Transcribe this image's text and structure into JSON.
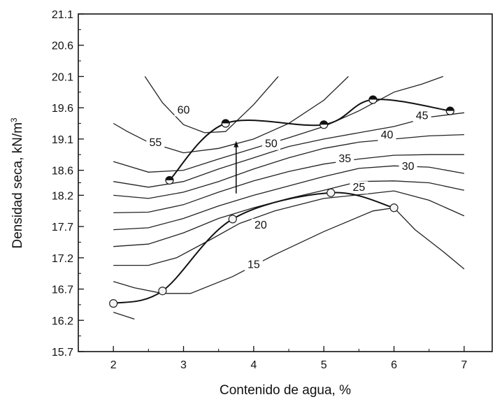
{
  "chart_data": {
    "type": "line",
    "title": "",
    "xlabel": "Contenido de agua, %",
    "ylabel_main": "Densidad seca, kN/m",
    "ylabel_sup": "3",
    "xlim": [
      1.5,
      7.4
    ],
    "ylim": [
      15.7,
      21.1
    ],
    "x_ticks": [
      "2",
      "3",
      "4",
      "5",
      "6",
      "7"
    ],
    "y_ticks": [
      "15.7",
      "16.2",
      "16.7",
      "17.2",
      "17.7",
      "18.2",
      "18.6",
      "19.1",
      "19.6",
      "20.1",
      "20.6",
      "21.1"
    ],
    "y_tick_values": [
      15.7,
      16.2,
      16.7,
      17.2,
      17.7,
      18.2,
      18.6,
      19.1,
      19.6,
      20.1,
      20.6,
      21.1
    ],
    "grid": false,
    "series": [
      {
        "marker": "open-circle",
        "x": [
          2.0,
          2.7,
          3.7,
          5.1,
          6.0
        ],
        "y": [
          16.47,
          16.67,
          17.82,
          18.24,
          18.0
        ]
      },
      {
        "marker": "half-filled-circle",
        "x": [
          2.8,
          3.6,
          5.0,
          5.7,
          6.8
        ],
        "y": [
          18.44,
          19.35,
          19.33,
          19.73,
          19.55
        ]
      }
    ],
    "contours": [
      {
        "label": "15",
        "label_at": [
          4.0,
          17.05
        ],
        "x": [
          2.0,
          2.3,
          2.7,
          3.1,
          3.7,
          4.3,
          5.0,
          5.7,
          6.0,
          6.3,
          6.7,
          7.0
        ],
        "y": [
          16.82,
          16.72,
          16.63,
          16.63,
          16.9,
          17.25,
          17.62,
          17.95,
          18.0,
          17.65,
          17.3,
          17.02
        ]
      },
      {
        "label": "20",
        "label_at": [
          4.1,
          17.68
        ],
        "x": [
          2.0,
          2.5,
          2.9,
          3.4,
          3.8,
          4.3,
          5.0,
          5.6,
          6.0,
          6.5,
          7.0
        ],
        "y": [
          17.08,
          17.08,
          17.2,
          17.5,
          17.75,
          17.95,
          18.15,
          18.22,
          18.27,
          18.12,
          17.87
        ]
      },
      {
        "label": "25",
        "label_at": [
          5.5,
          18.28
        ],
        "x": [
          2.0,
          2.5,
          3.0,
          3.5,
          4.0,
          4.5,
          5.0,
          5.5,
          6.0,
          6.5,
          7.0
        ],
        "y": [
          17.38,
          17.42,
          17.6,
          17.83,
          18.0,
          18.15,
          18.28,
          18.42,
          18.43,
          18.4,
          18.28
        ]
      },
      {
        "label": "30",
        "label_at": [
          6.2,
          18.62
        ],
        "x": [
          2.0,
          2.5,
          3.0,
          3.5,
          4.0,
          4.5,
          5.0,
          5.5,
          6.0,
          6.5,
          7.0
        ],
        "y": [
          17.65,
          17.68,
          17.83,
          18.03,
          18.2,
          18.35,
          18.5,
          18.63,
          18.67,
          18.65,
          18.55
        ]
      },
      {
        "label": "35",
        "label_at": [
          5.3,
          18.74
        ],
        "x": [
          2.0,
          2.5,
          3.0,
          3.5,
          4.0,
          4.5,
          5.0,
          5.5,
          6.0,
          6.5,
          7.0
        ],
        "y": [
          17.92,
          17.93,
          18.05,
          18.25,
          18.43,
          18.58,
          18.7,
          18.78,
          18.84,
          18.85,
          18.85
        ]
      },
      {
        "label": "40",
        "label_at": [
          5.9,
          19.12
        ],
        "x": [
          2.0,
          2.5,
          3.0,
          3.5,
          4.0,
          4.5,
          5.0,
          5.5,
          6.0,
          6.5,
          7.0
        ],
        "y": [
          18.2,
          18.15,
          18.25,
          18.42,
          18.62,
          18.8,
          18.95,
          19.05,
          19.1,
          19.15,
          19.17
        ]
      },
      {
        "label": "45",
        "label_at": [
          6.4,
          19.43
        ],
        "x": [
          2.0,
          2.5,
          3.0,
          3.5,
          4.0,
          4.5,
          5.0,
          5.5,
          6.0,
          6.5,
          7.0
        ],
        "y": [
          18.42,
          18.33,
          18.42,
          18.62,
          18.8,
          18.98,
          19.1,
          19.2,
          19.3,
          19.45,
          19.52
        ]
      },
      {
        "label": "50",
        "label_at": [
          4.25,
          18.98
        ],
        "x": [
          2.0,
          2.5,
          3.0,
          3.5,
          4.0,
          4.5,
          5.0,
          5.5,
          6.0,
          6.4,
          6.7
        ],
        "y": [
          18.74,
          18.57,
          18.6,
          18.78,
          18.95,
          19.12,
          19.3,
          19.55,
          19.85,
          19.98,
          20.1
        ]
      },
      {
        "label": "55",
        "label_at": [
          2.6,
          19.0
        ],
        "x": [
          2.0,
          2.2,
          2.5,
          3.0,
          3.5,
          4.0,
          4.5,
          5.0,
          5.35
        ],
        "y": [
          19.35,
          19.22,
          19.05,
          18.88,
          18.95,
          19.1,
          19.35,
          19.72,
          20.1
        ]
      },
      {
        "label": "60",
        "label_at": [
          3.0,
          19.52
        ],
        "x": [
          2.45,
          2.7,
          3.0,
          3.3,
          3.6,
          4.0,
          4.35
        ],
        "y": [
          20.1,
          19.68,
          19.33,
          19.2,
          19.22,
          19.65,
          20.1
        ]
      }
    ],
    "annotation_arrow": {
      "x": 3.75,
      "y_from": 18.23,
      "y_to": 19.07
    },
    "extra_segment": {
      "x": [
        2.0,
        2.3
      ],
      "y": [
        16.33,
        16.22
      ]
    }
  }
}
